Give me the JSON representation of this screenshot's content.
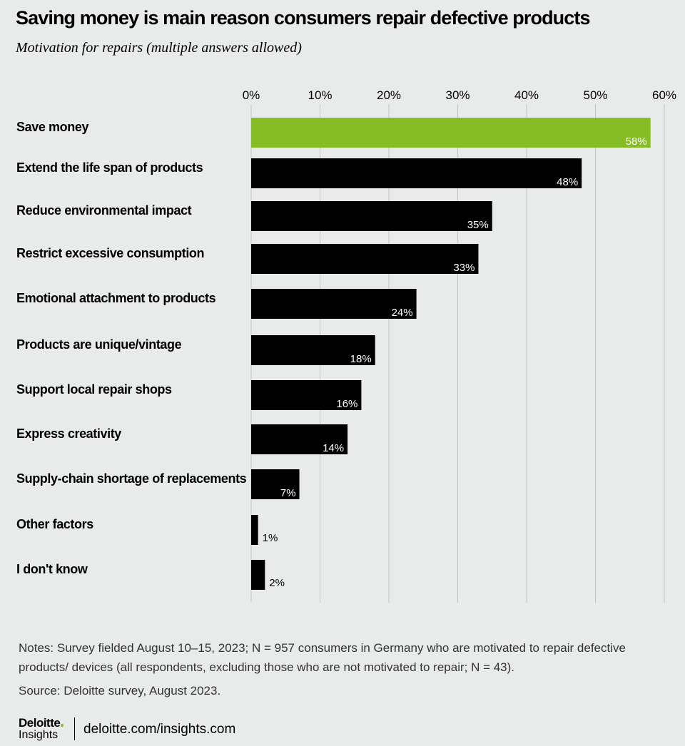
{
  "title": "Saving money is main reason consumers repair defective products",
  "subtitle": "Motivation for repairs (multiple answers allowed)",
  "chart_data": {
    "type": "bar",
    "orientation": "horizontal",
    "categories": [
      "Save money",
      "Extend the life span of products",
      "Reduce environmental impact",
      "Restrict excessive consumption",
      "Emotional attachment to products",
      "Products are unique/vintage",
      "Support local repair shops",
      "Express creativity",
      "Supply-chain shortage of replacements",
      "Other factors",
      "I don't know"
    ],
    "values": [
      58,
      48,
      35,
      33,
      24,
      18,
      16,
      14,
      7,
      1,
      2
    ],
    "value_labels": [
      "58%",
      "48%",
      "35%",
      "33%",
      "24%",
      "18%",
      "16%",
      "14%",
      "7%",
      "1%",
      "2%"
    ],
    "ticks": [
      "0%",
      "10%",
      "20%",
      "30%",
      "40%",
      "50%",
      "60%"
    ],
    "xlim": [
      0,
      60
    ],
    "axis_position": "top",
    "grid": true,
    "highlight_index": 0,
    "colors": {
      "highlight": "#86bc25",
      "bar": "#000000",
      "grid": "#c4c4c4",
      "background": "#e9eaea"
    }
  },
  "notes": "Notes: Survey fielded August 10–15, 2023; N = 957 consumers in Germany who are motivated to repair defective products/ devices (all respondents, excluding those who are not motivated to repair; N = 43).",
  "source": "Source: Deloitte survey, August 2023.",
  "footer": {
    "logo_main": "Deloitte",
    "logo_sub": "Insights",
    "url": "deloitte.com/insights.com"
  }
}
